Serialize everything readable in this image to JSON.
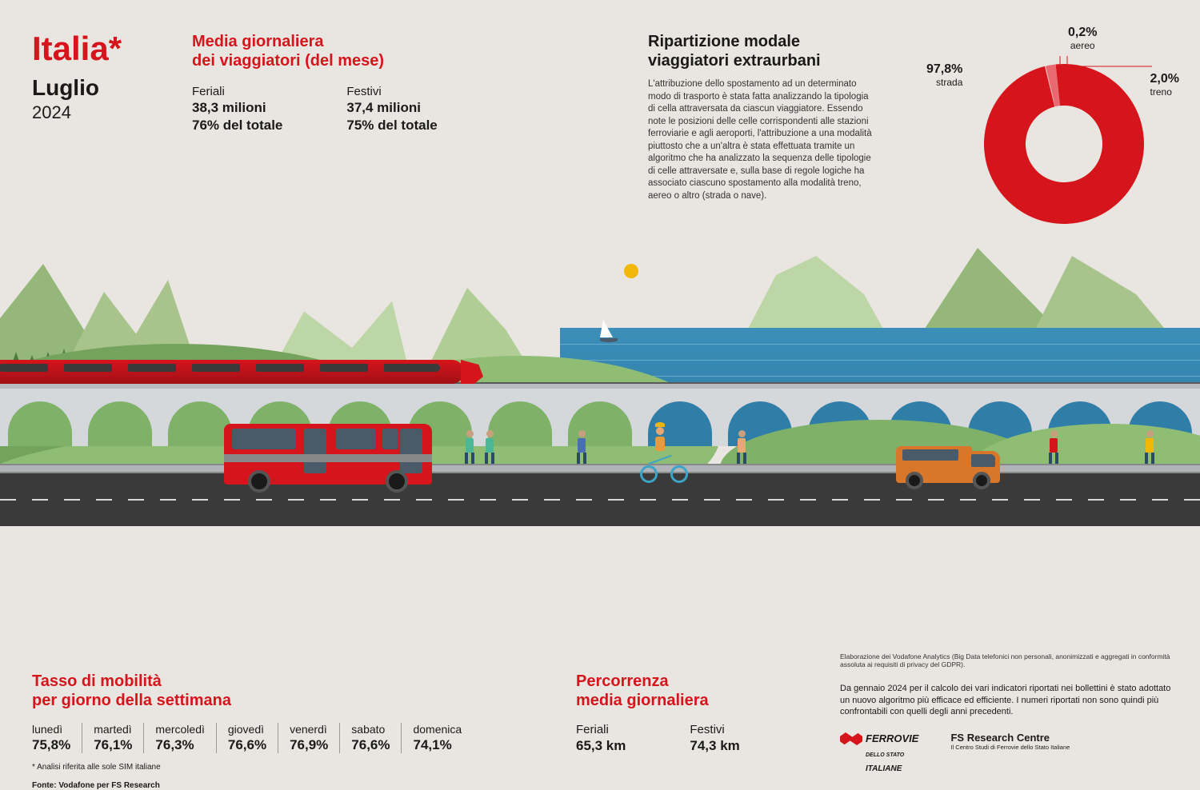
{
  "header": {
    "country": "Italia",
    "asterisk": "*",
    "month": "Luglio",
    "year": "2024"
  },
  "media_giornaliera": {
    "title_line1": "Media giornaliera",
    "title_line2": "dei viaggiatori (del mese)",
    "feriali": {
      "label": "Feriali",
      "value": "38,3 milioni",
      "pct": "76% del totale"
    },
    "festivi": {
      "label": "Festivi",
      "value": "37,4 milioni",
      "pct": "75% del totale"
    }
  },
  "ripartizione": {
    "title_line1": "Ripartizione modale",
    "title_line2": "viaggiatori extraurbani",
    "description": "L'attribuzione dello spostamento ad un determinato modo di trasporto è stata fatta analizzando la tipologia di cella attraversata da ciascun viaggiatore. Essendo note le posizioni delle celle corrispondenti alle stazioni ferroviarie e agli aeroporti, l'attribuzione a una modalità piuttosto che a un'altra è stata effettuata tramite un algoritmo che ha analizzato la sequenza delle tipologie di celle attraversate e, sulla base di regole logiche ha associato ciascuno spostamento alla modalità treno, aereo o altro (strada o nave)."
  },
  "donut": {
    "type": "donut",
    "slices": [
      {
        "label": "strada",
        "value": 97.8,
        "display": "97,8%",
        "color": "#d6141b"
      },
      {
        "label": "aereo",
        "value": 0.2,
        "display": "0,2%",
        "color": "#f2b3b5"
      },
      {
        "label": "treno",
        "value": 2.0,
        "display": "2,0%",
        "color": "#e86a70"
      }
    ],
    "inner_radius": 48,
    "outer_radius": 100,
    "background": "#e9e6e1"
  },
  "tasso": {
    "title_line1": "Tasso di mobilità",
    "title_line2": "per giorno della settimana",
    "days": [
      {
        "name": "lunedì",
        "value": "75,8%"
      },
      {
        "name": "martedì",
        "value": "76,1%"
      },
      {
        "name": "mercoledì",
        "value": "76,3%"
      },
      {
        "name": "giovedì",
        "value": "76,6%"
      },
      {
        "name": "venerdì",
        "value": "76,9%"
      },
      {
        "name": "sabato",
        "value": "76,6%"
      },
      {
        "name": "domenica",
        "value": "74,1%"
      }
    ],
    "footnote1": "* Analisi riferita alle sole SIM italiane",
    "footnote2": "Fonte: Vodafone per FS Research"
  },
  "percorrenza": {
    "title_line1": "Percorrenza",
    "title_line2": "media giornaliera",
    "feriali": {
      "label": "Feriali",
      "value": "65,3  km"
    },
    "festivi": {
      "label": "Festivi",
      "value": "74,3 km"
    }
  },
  "right_notes": {
    "vodafone_note": "Elaborazione dei Vodafone Analytics (Big Data telefonici non personali, anonimizzati e aggregati in conformità assoluta ai requisiti di privacy del GDPR).",
    "algo_note": "Da gennaio 2024 per il calcolo dei vari indicatori riportati nei bollettini è stato adottato un nuovo algoritmo più efficace ed efficiente. I numeri riportati non sono quindi più confrontabili con quelli degli anni precedenti.",
    "logo_fs_top": "FERROVIE",
    "logo_fs_mid": "DELLO STATO",
    "logo_fs_bot": "ITALIANE",
    "logo_fsrc": "FS Research Centre",
    "logo_fsrc_sub": "Il Centro Studi di Ferrovie dello Stato Italiane"
  },
  "colors": {
    "accent": "#d6141b",
    "bg": "#e9e6e1",
    "green1": "#7fb168",
    "green2": "#8fbd74",
    "sea": "#2f7ea8",
    "road": "#3a3a3a",
    "orange": "#d8772a"
  }
}
